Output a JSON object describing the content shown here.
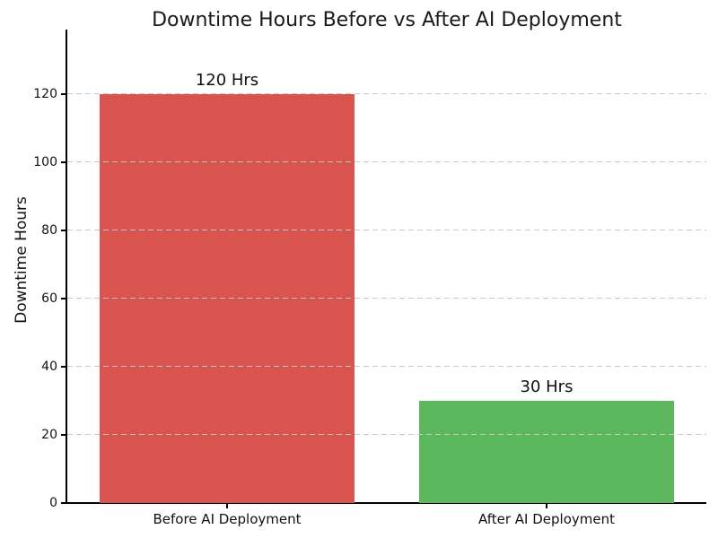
{
  "chart_data": {
    "type": "bar",
    "title": "Downtime Hours Before vs After AI Deployment",
    "categories": [
      "Before AI Deployment",
      "After AI Deployment"
    ],
    "values": [
      120,
      30
    ],
    "bar_labels": [
      "120 Hrs",
      "30 Hrs"
    ],
    "bar_colors": [
      "#d9534f",
      "#5cb85c"
    ],
    "xlabel": "",
    "ylabel": "Downtime Hours",
    "yticks": [
      0,
      20,
      40,
      60,
      80,
      100,
      120
    ],
    "ylim": [
      0,
      139
    ],
    "grid": "horizontal-dashed",
    "grid_color": "#c8c8c8",
    "axis_color": "#000000",
    "legend": "none"
  }
}
